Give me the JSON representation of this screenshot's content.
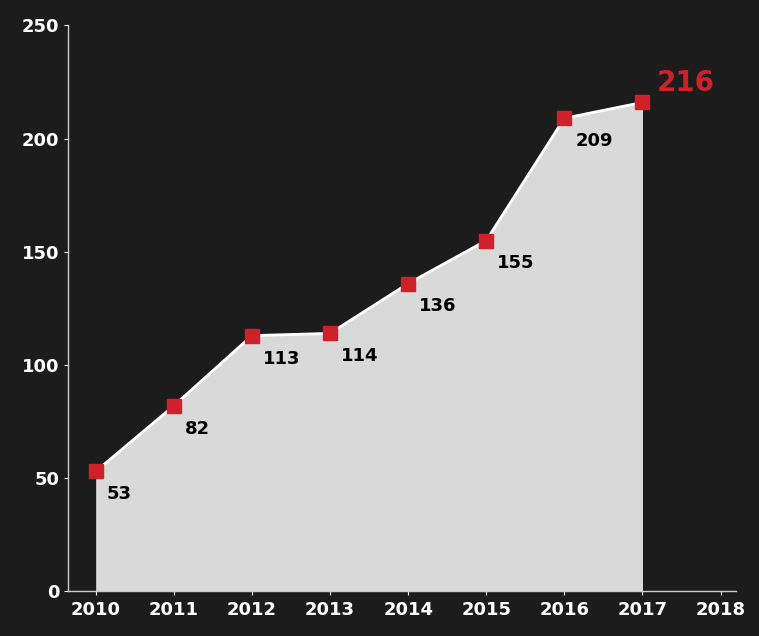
{
  "chart_data": {
    "type": "area",
    "categories": [
      "2010",
      "2011",
      "2012",
      "2013",
      "2014",
      "2015",
      "2016",
      "2017",
      "2018"
    ],
    "values": [
      53,
      82,
      113,
      114,
      136,
      155,
      209,
      216,
      null
    ],
    "color": "#d9d9d9",
    "marker": "square",
    "ylim": [
      0,
      250
    ],
    "yticks": [
      0,
      50,
      100,
      150,
      200,
      250
    ],
    "data_labels": true,
    "grid": false
  }
}
